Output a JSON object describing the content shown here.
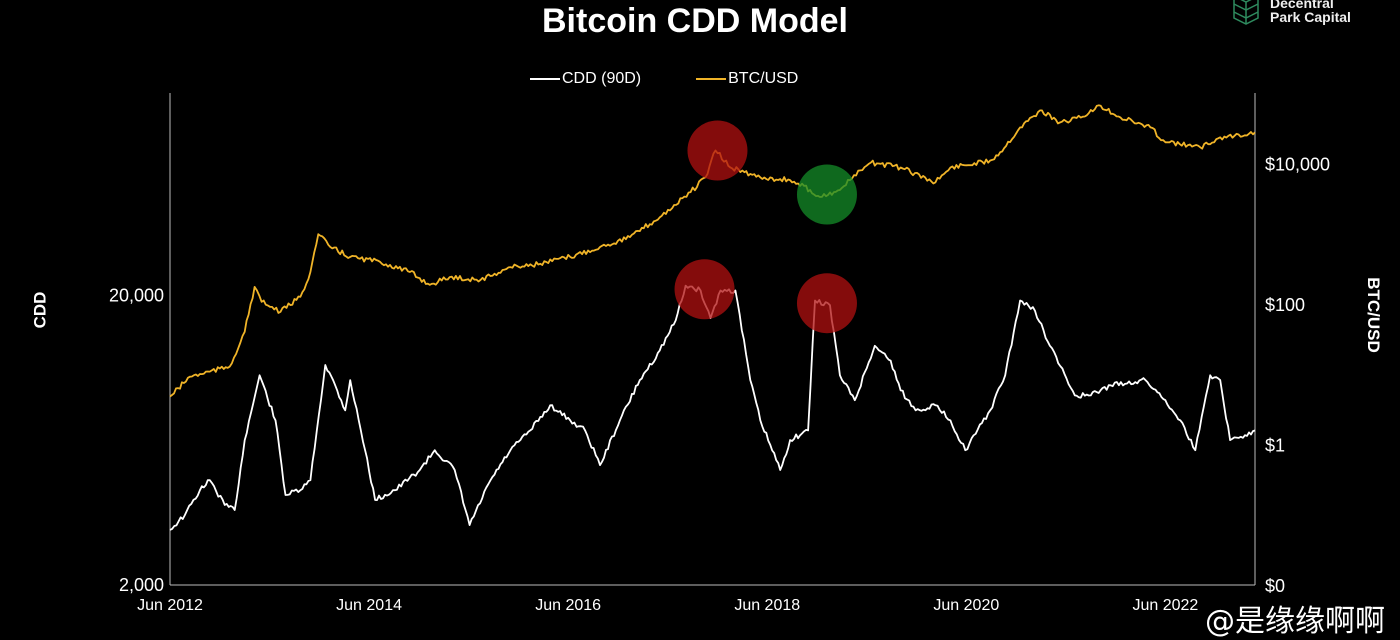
{
  "brand": {
    "logo_text_1": "Decentral",
    "logo_text_2": "Park Capital"
  },
  "watermark": "@是缘缘啊啊",
  "chart_data": {
    "type": "line",
    "title": "Bitcoin CDD Model",
    "xlabel": "",
    "ylabel_left": "CDD",
    "ylabel_right": "BTC/USD",
    "x_ticks": [
      {
        "label": "Jun 2012",
        "x": 2012.42
      },
      {
        "label": "Jun 2014",
        "x": 2014.42
      },
      {
        "label": "Jun 2016",
        "x": 2016.42
      },
      {
        "label": "Jun 2018",
        "x": 2018.42
      },
      {
        "label": "Jun 2020",
        "x": 2020.42
      },
      {
        "label": "Jun 2022",
        "x": 2022.42
      }
    ],
    "xlim": [
      2012.42,
      2023.32
    ],
    "ylim_left": [
      2000,
      100000
    ],
    "ylim_right": [
      0.01,
      100000
    ],
    "y_scale": "log",
    "left_ticks": [
      {
        "label": "2,000",
        "v": 2000
      },
      {
        "label": "20,000",
        "v": 20000
      }
    ],
    "right_ticks": [
      {
        "label": "$0",
        "v": 0.01
      },
      {
        "label": "$1",
        "v": 1
      },
      {
        "label": "$100",
        "v": 100
      },
      {
        "label": "$10,000",
        "v": 10000
      }
    ],
    "legend_position": "top-center",
    "series": [
      {
        "name": "CDD (90D)",
        "axis": "left",
        "color": "#ffffff",
        "x": [
          2012.42,
          2012.57,
          2012.72,
          2012.82,
          2012.97,
          2013.07,
          2013.17,
          2013.32,
          2013.48,
          2013.58,
          2013.73,
          2013.83,
          2013.98,
          2014.08,
          2014.18,
          2014.23,
          2014.38,
          2014.48,
          2014.68,
          2014.93,
          2015.08,
          2015.28,
          2015.43,
          2015.64,
          2015.84,
          2016.04,
          2016.24,
          2016.44,
          2016.59,
          2016.74,
          2016.94,
          2017.14,
          2017.34,
          2017.5,
          2017.6,
          2017.75,
          2017.85,
          2017.95,
          2018.1,
          2018.25,
          2018.35,
          2018.55,
          2018.65,
          2018.83,
          2018.9,
          2019.05,
          2019.15,
          2019.3,
          2019.5,
          2019.66,
          2019.76,
          2019.91,
          2020.11,
          2020.26,
          2020.41,
          2020.66,
          2020.81,
          2020.96,
          2021.11,
          2021.26,
          2021.51,
          2021.67,
          2021.87,
          2022.22,
          2022.42,
          2022.57,
          2022.72,
          2022.87,
          2022.97,
          2023.07,
          2023.22,
          2023.32
        ],
        "y": [
          3100,
          3490,
          4250,
          4600,
          3780,
          3630,
          6330,
          10600,
          7410,
          4090,
          4250,
          4600,
          11500,
          9790,
          8020,
          10200,
          5840,
          3930,
          4250,
          4990,
          5840,
          4990,
          3220,
          4600,
          5840,
          6840,
          8350,
          7410,
          6840,
          5190,
          7410,
          10200,
          12900,
          16400,
          21600,
          20800,
          16700,
          20800,
          20800,
          10200,
          7410,
          4990,
          6330,
          6840,
          19200,
          18500,
          10600,
          8690,
          13400,
          11900,
          9400,
          8020,
          8350,
          7410,
          5840,
          8020,
          10600,
          19200,
          17700,
          13400,
          9030,
          9030,
          9790,
          10200,
          8690,
          7410,
          5840,
          10600,
          10200,
          6330,
          6580,
          6840
        ]
      },
      {
        "name": "BTC/USD",
        "axis": "right",
        "color": "#f0b428",
        "x": [
          2012.42,
          2012.62,
          2013.02,
          2013.17,
          2013.27,
          2013.34,
          2013.53,
          2013.73,
          2013.83,
          2013.91,
          2014.03,
          2014.23,
          2014.53,
          2014.83,
          2015.03,
          2015.23,
          2015.54,
          2015.84,
          2016.14,
          2016.44,
          2016.74,
          2017.04,
          2017.34,
          2017.65,
          2017.8,
          2017.9,
          2018.05,
          2018.35,
          2018.65,
          2018.85,
          2018.95,
          2019.15,
          2019.25,
          2019.46,
          2019.76,
          2020.11,
          2020.26,
          2020.66,
          2020.76,
          2020.96,
          2021.16,
          2021.36,
          2021.57,
          2021.77,
          2021.97,
          2022.27,
          2022.42,
          2022.77,
          2022.97,
          2023.32
        ],
        "y": [
          4.8,
          9.2,
          12.8,
          40,
          174,
          107,
          77,
          126,
          284,
          980,
          645,
          465,
          396,
          284,
          187,
          240,
          219,
          333,
          371,
          465,
          645,
          891,
          1700,
          3890,
          6310,
          15200,
          8710,
          6310,
          5760,
          4170,
          3310,
          4170,
          5760,
          10240,
          8710,
          5370,
          8710,
          10960,
          14400,
          32400,
          56500,
          38000,
          44700,
          66000,
          44700,
          32400,
          19900,
          16900,
          23400,
          27500
        ]
      }
    ],
    "annotations": [
      {
        "type": "circle",
        "color": "#b01010",
        "axis": "right",
        "x": 2017.92,
        "y": 15200,
        "meaning": "top"
      },
      {
        "type": "circle",
        "color": "#b01010",
        "axis": "left",
        "x": 2017.79,
        "y": 21000,
        "meaning": "top"
      },
      {
        "type": "circle",
        "color": "#b01010",
        "axis": "left",
        "x": 2019.02,
        "y": 18800,
        "meaning": "top"
      },
      {
        "type": "circle",
        "color": "#148c28",
        "axis": "right",
        "x": 2019.02,
        "y": 3600,
        "meaning": "bottom"
      }
    ]
  }
}
